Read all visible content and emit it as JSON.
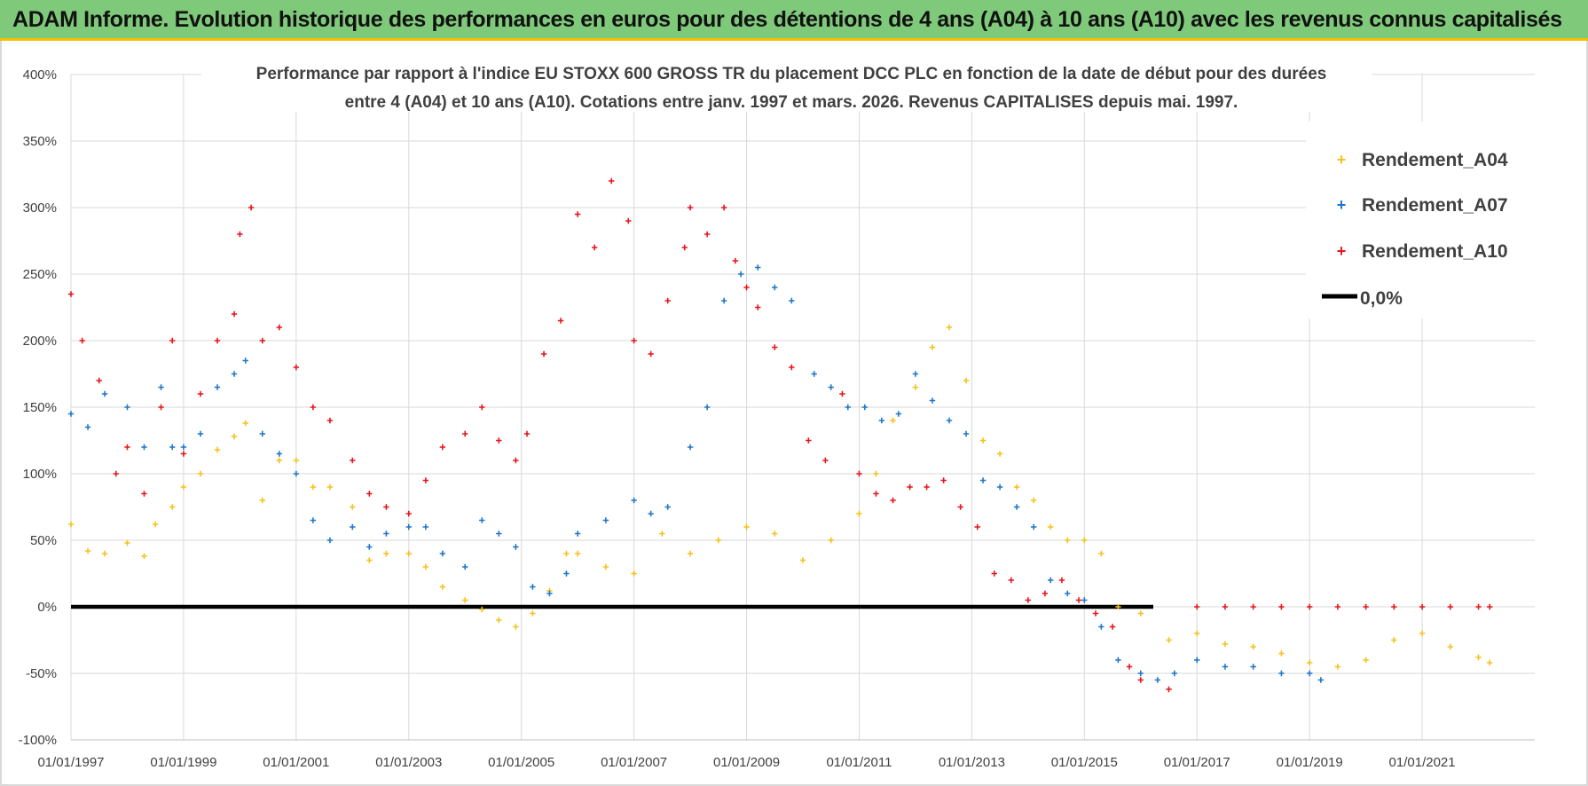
{
  "header": {
    "title": "ADAM Informe. Evolution historique des performances en euros pour des détentions de 4 ans (A04) à 10 ans (A10) avec les revenus connus capitalisés"
  },
  "colors": {
    "banner": "#7fc97a",
    "A04": "#f5c21b",
    "A07": "#1f77c9",
    "A10": "#e8141b",
    "zero": "#000000",
    "grid": "#d9d9d9"
  },
  "chart_data": {
    "type": "scatter",
    "title": [
      "Performance par rapport à l'indice EU STOXX 600 GROSS TR  du placement DCC PLC en fonction de la date de début pour des durées",
      "entre 4 (A04) et 10 ans (A10).  Cotations entre janv. 1997 et mars. 2026. Revenus CAPITALISES  depuis mai. 1997."
    ],
    "xlabel": "",
    "ylabel": "",
    "x_range": [
      1997.0,
      2023.0
    ],
    "x_ticks": [
      1997,
      1999,
      2001,
      2003,
      2005,
      2007,
      2009,
      2011,
      2013,
      2015,
      2017,
      2019,
      2021
    ],
    "x_tick_labels": [
      "01/01/1997",
      "01/01/1999",
      "01/01/2001",
      "01/01/2003",
      "01/01/2005",
      "01/01/2007",
      "01/01/2009",
      "01/01/2011",
      "01/01/2013",
      "01/01/2015",
      "01/01/2017",
      "01/01/2019",
      "01/01/2021"
    ],
    "ylim": [
      -100,
      400
    ],
    "y_ticks": [
      -100,
      -50,
      0,
      50,
      100,
      150,
      200,
      250,
      300,
      350,
      400
    ],
    "y_tick_labels": [
      "-100%",
      "-50%",
      "0%",
      "50%",
      "100%",
      "150%",
      "200%",
      "250%",
      "300%",
      "350%",
      "400%"
    ],
    "grid": true,
    "legend_position": "top-right",
    "series": [
      {
        "name": "Rendement_A04",
        "marker": "+",
        "color": "#f5c21b",
        "x": [
          1997.0,
          1997.3,
          1997.6,
          1998.0,
          1998.3,
          1998.5,
          1998.8,
          1999.0,
          1999.3,
          1999.6,
          1999.9,
          2000.1,
          2000.4,
          2000.7,
          2001.0,
          2001.3,
          2001.6,
          2002.0,
          2002.3,
          2002.6,
          2003.0,
          2003.3,
          2003.6,
          2004.0,
          2004.3,
          2004.6,
          2004.9,
          2005.2,
          2005.5,
          2005.8,
          2006.0,
          2006.5,
          2007.0,
          2007.5,
          2008.0,
          2008.5,
          2009.0,
          2009.5,
          2010.0,
          2010.5,
          2011.0,
          2011.3,
          2011.6,
          2012.0,
          2012.3,
          2012.6,
          2012.9,
          2013.2,
          2013.5,
          2013.8,
          2014.1,
          2014.4,
          2014.7,
          2015.0,
          2015.3,
          2015.6,
          2016.0,
          2016.5,
          2017.0,
          2017.5,
          2018.0,
          2018.5,
          2019.0,
          2019.5,
          2020.0,
          2020.5,
          2021.0,
          2021.5,
          2022.0,
          2022.2
        ],
        "y": [
          62,
          42,
          40,
          48,
          38,
          62,
          75,
          90,
          100,
          118,
          128,
          138,
          80,
          110,
          110,
          90,
          90,
          75,
          35,
          40,
          40,
          30,
          15,
          5,
          -2,
          -10,
          -15,
          -5,
          12,
          40,
          40,
          30,
          25,
          55,
          40,
          50,
          60,
          55,
          35,
          50,
          70,
          100,
          140,
          165,
          195,
          210,
          170,
          125,
          115,
          90,
          80,
          60,
          50,
          50,
          40,
          0,
          -5,
          -25,
          -20,
          -28,
          -30,
          -35,
          -42,
          -45,
          -40,
          -25,
          -20,
          -30,
          -38,
          -42
        ]
      },
      {
        "name": "Rendement_A07",
        "marker": "+",
        "color": "#1f77c9",
        "x": [
          1997.0,
          1997.3,
          1997.6,
          1998.0,
          1998.3,
          1998.6,
          1998.8,
          1999.0,
          1999.3,
          1999.6,
          1999.9,
          2000.1,
          2000.4,
          2000.7,
          2001.0,
          2001.3,
          2001.6,
          2002.0,
          2002.3,
          2002.6,
          2003.0,
          2003.3,
          2003.6,
          2004.0,
          2004.3,
          2004.6,
          2004.9,
          2005.2,
          2005.5,
          2005.8,
          2006.0,
          2006.5,
          2007.0,
          2007.3,
          2007.6,
          2008.0,
          2008.3,
          2008.6,
          2008.9,
          2009.2,
          2009.5,
          2009.8,
          2010.2,
          2010.5,
          2010.8,
          2011.1,
          2011.4,
          2011.7,
          2012.0,
          2012.3,
          2012.6,
          2012.9,
          2013.2,
          2013.5,
          2013.8,
          2014.1,
          2014.4,
          2014.7,
          2015.0,
          2015.3,
          2015.6,
          2016.0,
          2016.3,
          2016.6,
          2017.0,
          2017.5,
          2018.0,
          2018.5,
          2019.0,
          2019.2
        ],
        "y": [
          145,
          135,
          160,
          150,
          120,
          165,
          120,
          120,
          130,
          165,
          175,
          185,
          130,
          115,
          100,
          65,
          50,
          60,
          45,
          55,
          60,
          60,
          40,
          30,
          65,
          55,
          45,
          15,
          10,
          25,
          55,
          65,
          80,
          70,
          75,
          120,
          150,
          230,
          250,
          255,
          240,
          230,
          175,
          165,
          150,
          150,
          140,
          145,
          175,
          155,
          140,
          130,
          95,
          90,
          75,
          60,
          20,
          10,
          5,
          -15,
          -40,
          -50,
          -55,
          -50,
          -40,
          -45,
          -45,
          -50,
          -50,
          -55
        ]
      },
      {
        "name": "Rendement_A10",
        "marker": "+",
        "color": "#e8141b",
        "x": [
          1997.0,
          1997.2,
          1997.5,
          1997.8,
          1998.0,
          1998.3,
          1998.6,
          1998.8,
          1999.0,
          1999.3,
          1999.6,
          1999.9,
          2000.0,
          2000.2,
          2000.4,
          2000.7,
          2001.0,
          2001.3,
          2001.6,
          2002.0,
          2002.3,
          2002.6,
          2003.0,
          2003.3,
          2003.6,
          2004.0,
          2004.3,
          2004.6,
          2004.9,
          2005.1,
          2005.4,
          2005.7,
          2006.0,
          2006.3,
          2006.6,
          2006.9,
          2007.0,
          2007.3,
          2007.6,
          2007.9,
          2008.0,
          2008.3,
          2008.6,
          2008.8,
          2009.0,
          2009.2,
          2009.5,
          2009.8,
          2010.1,
          2010.4,
          2010.7,
          2011.0,
          2011.3,
          2011.6,
          2011.9,
          2012.2,
          2012.5,
          2012.8,
          2013.1,
          2013.4,
          2013.7,
          2014.0,
          2014.3,
          2014.6,
          2014.9,
          2015.2,
          2015.5,
          2015.8,
          2016.0,
          2016.5,
          2017.0,
          2017.5,
          2018.0,
          2018.5,
          2019.0,
          2019.5,
          2020.0,
          2020.5,
          2021.0,
          2021.5,
          2022.0,
          2022.2
        ],
        "y": [
          235,
          200,
          170,
          100,
          120,
          85,
          150,
          200,
          115,
          160,
          200,
          220,
          280,
          300,
          200,
          210,
          180,
          150,
          140,
          110,
          85,
          75,
          70,
          95,
          120,
          130,
          150,
          125,
          110,
          130,
          190,
          215,
          295,
          270,
          320,
          290,
          200,
          190,
          230,
          270,
          300,
          280,
          300,
          260,
          240,
          225,
          195,
          180,
          125,
          110,
          160,
          100,
          85,
          80,
          90,
          90,
          95,
          75,
          60,
          25,
          20,
          5,
          10,
          20,
          5,
          -5,
          -15,
          -45,
          -55,
          -62,
          0,
          0,
          0,
          0,
          0,
          0,
          0,
          0,
          0,
          0,
          0,
          0
        ]
      }
    ],
    "reference_line": {
      "name": "0,0%",
      "y": 0,
      "color": "#000000"
    }
  }
}
